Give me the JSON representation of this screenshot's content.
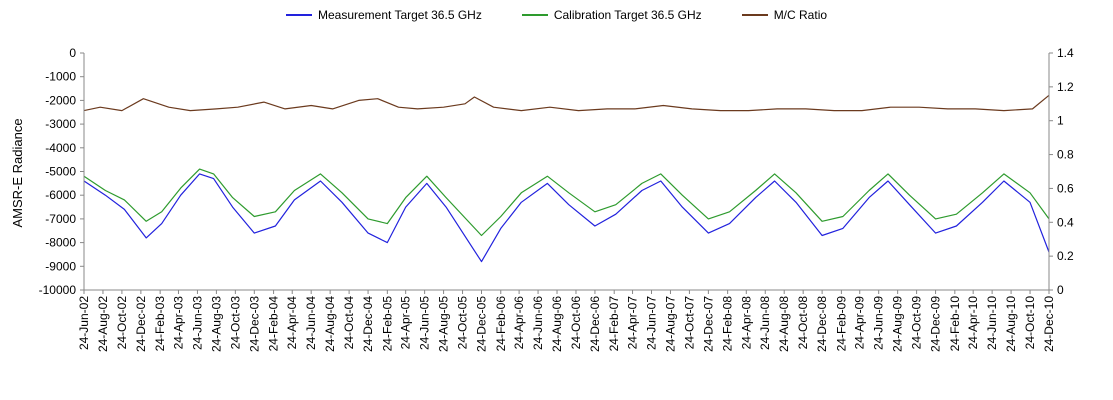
{
  "chart_data": {
    "type": "line",
    "title": "",
    "ylabel": "AMSR-E Radiance",
    "y2label": "",
    "ylim": [
      -10000,
      0
    ],
    "y2lim": [
      0,
      1.4
    ],
    "yticks": [
      0,
      -1000,
      -2000,
      -3000,
      -4000,
      -5000,
      -6000,
      -7000,
      -8000,
      -9000,
      -10000
    ],
    "y2ticks": [
      1.4,
      1.2,
      1,
      0.8,
      0.6,
      0.4,
      0.2,
      0
    ],
    "xlim": [
      "2002-06-24",
      "2010-12-24"
    ],
    "xtick_labels": [
      "24-Jun-02",
      "24-Aug-02",
      "24-Oct-02",
      "24-Dec-02",
      "24-Feb-03",
      "24-Apr-03",
      "24-Jun-03",
      "24-Aug-03",
      "24-Oct-03",
      "24-Dec-03",
      "24-Feb-04",
      "24-Apr-04",
      "24-Jun-04",
      "24-Aug-04",
      "24-Oct-04",
      "24-Dec-04",
      "24-Feb-05",
      "24-Apr-05",
      "24-Jun-05",
      "24-Aug-05",
      "24-Oct-05",
      "24-Dec-05",
      "24-Feb-06",
      "24-Apr-06",
      "24-Jun-06",
      "24-Aug-06",
      "24-Oct-06",
      "24-Dec-06",
      "24-Feb-07",
      "24-Apr-07",
      "24-Jun-07",
      "24-Aug-07",
      "24-Oct-07",
      "24-Dec-07",
      "24-Feb-08",
      "24-Apr-08",
      "24-Jun-08",
      "24-Aug-08",
      "24-Oct-08",
      "24-Dec-08",
      "24-Feb-09",
      "24-Apr-09",
      "24-Jun-09",
      "24-Aug-09",
      "24-Oct-09",
      "24-Dec-09",
      "24-Feb-10",
      "24-Apr-10",
      "24-Jun-10",
      "24-Aug-10",
      "24-Oct-10",
      "24-Dec-10"
    ],
    "grid": false,
    "legend_position": "top",
    "series": [
      {
        "name": "Measurement Target 36.5 GHz",
        "axis": "left",
        "color": "#2222dd",
        "x": [
          "2002-06-24",
          "2002-09-01",
          "2002-11-01",
          "2003-01-10",
          "2003-03-01",
          "2003-05-01",
          "2003-07-01",
          "2003-08-15",
          "2003-10-15",
          "2003-12-24",
          "2004-03-01",
          "2004-05-01",
          "2004-07-24",
          "2004-10-01",
          "2004-12-24",
          "2005-02-24",
          "2005-04-24",
          "2005-07-01",
          "2005-09-01",
          "2005-12-24",
          "2006-02-24",
          "2006-05-01",
          "2006-07-24",
          "2006-10-01",
          "2006-12-24",
          "2007-03-01",
          "2007-05-24",
          "2007-07-24",
          "2007-10-01",
          "2007-12-24",
          "2008-03-01",
          "2008-05-24",
          "2008-07-24",
          "2008-10-01",
          "2008-12-24",
          "2009-03-01",
          "2009-05-24",
          "2009-07-24",
          "2009-10-01",
          "2009-12-24",
          "2010-03-01",
          "2010-05-24",
          "2010-08-01",
          "2010-10-24",
          "2010-12-24"
        ],
        "values": [
          -5400,
          -6000,
          -6600,
          -7800,
          -7200,
          -6000,
          -5100,
          -5300,
          -6500,
          -7600,
          -7300,
          -6200,
          -5400,
          -6300,
          -7600,
          -8000,
          -6500,
          -5500,
          -6500,
          -8800,
          -7400,
          -6300,
          -5500,
          -6400,
          -7300,
          -6800,
          -5800,
          -5400,
          -6500,
          -7600,
          -7200,
          -6100,
          -5400,
          -6300,
          -7700,
          -7400,
          -6100,
          -5400,
          -6400,
          -7600,
          -7300,
          -6300,
          -5400,
          -6300,
          -8400
        ]
      },
      {
        "name": "Calibration Target 36.5 GHz",
        "axis": "left",
        "color": "#2e9b2e",
        "x": [
          "2002-06-24",
          "2002-09-01",
          "2002-11-01",
          "2003-01-10",
          "2003-03-01",
          "2003-05-01",
          "2003-07-01",
          "2003-08-15",
          "2003-10-15",
          "2003-12-24",
          "2004-03-01",
          "2004-05-01",
          "2004-07-24",
          "2004-10-01",
          "2004-12-24",
          "2005-02-24",
          "2005-04-24",
          "2005-07-01",
          "2005-09-01",
          "2005-12-24",
          "2006-02-24",
          "2006-05-01",
          "2006-07-24",
          "2006-10-01",
          "2006-12-24",
          "2007-03-01",
          "2007-05-24",
          "2007-07-24",
          "2007-10-01",
          "2007-12-24",
          "2008-03-01",
          "2008-05-24",
          "2008-07-24",
          "2008-10-01",
          "2008-12-24",
          "2009-03-01",
          "2009-05-24",
          "2009-07-24",
          "2009-10-01",
          "2009-12-24",
          "2010-03-01",
          "2010-05-24",
          "2010-08-01",
          "2010-10-24",
          "2010-12-24"
        ],
        "values": [
          -5200,
          -5800,
          -6200,
          -7100,
          -6700,
          -5700,
          -4900,
          -5100,
          -6100,
          -6900,
          -6700,
          -5800,
          -5100,
          -5900,
          -7000,
          -7200,
          -6100,
          -5200,
          -6100,
          -7700,
          -6900,
          -5900,
          -5200,
          -5900,
          -6700,
          -6400,
          -5500,
          -5100,
          -6000,
          -7000,
          -6700,
          -5800,
          -5100,
          -5900,
          -7100,
          -6900,
          -5800,
          -5100,
          -6000,
          -7000,
          -6800,
          -5900,
          -5100,
          -5900,
          -7000
        ]
      },
      {
        "name": "M/C Ratio",
        "axis": "right",
        "color": "#6b3a1e",
        "x": [
          "2002-06-24",
          "2002-08-15",
          "2002-10-24",
          "2003-01-01",
          "2003-03-24",
          "2003-06-01",
          "2003-08-24",
          "2003-11-01",
          "2004-01-24",
          "2004-04-01",
          "2004-06-24",
          "2004-09-01",
          "2004-11-24",
          "2005-01-24",
          "2005-04-01",
          "2005-06-01",
          "2005-08-24",
          "2005-11-01",
          "2005-12-01",
          "2006-02-01",
          "2006-05-01",
          "2006-08-01",
          "2006-11-01",
          "2007-02-01",
          "2007-05-01",
          "2007-08-01",
          "2007-11-01",
          "2008-02-01",
          "2008-05-01",
          "2008-08-01",
          "2008-11-01",
          "2009-02-01",
          "2009-05-01",
          "2009-08-01",
          "2009-11-01",
          "2010-02-01",
          "2010-05-01",
          "2010-08-01",
          "2010-11-01",
          "2010-12-24"
        ],
        "values": [
          1.06,
          1.08,
          1.06,
          1.13,
          1.08,
          1.06,
          1.07,
          1.08,
          1.11,
          1.07,
          1.09,
          1.07,
          1.12,
          1.13,
          1.08,
          1.07,
          1.08,
          1.1,
          1.14,
          1.08,
          1.06,
          1.08,
          1.06,
          1.07,
          1.07,
          1.09,
          1.07,
          1.06,
          1.06,
          1.07,
          1.07,
          1.06,
          1.06,
          1.08,
          1.08,
          1.07,
          1.07,
          1.06,
          1.07,
          1.15
        ]
      }
    ]
  }
}
